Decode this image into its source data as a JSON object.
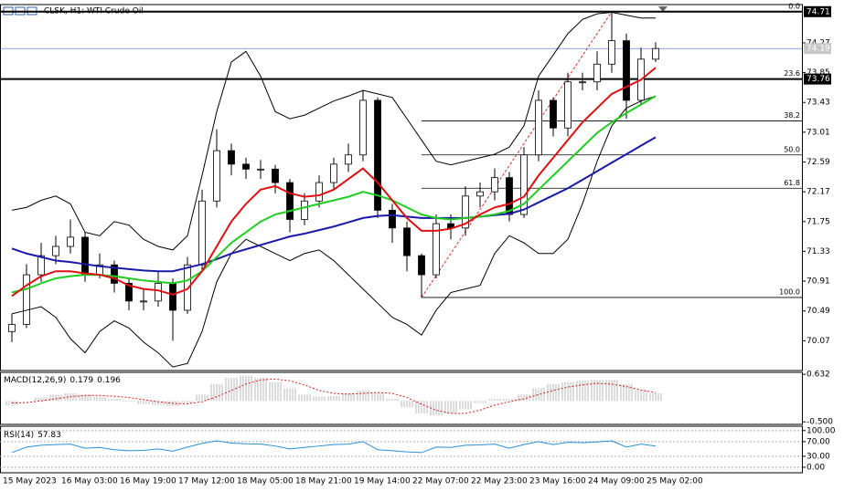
{
  "chart_data": [
    {
      "type": "candlestick",
      "title": "CLSK, H1: WTI Crude Oil",
      "x": [
        "15 May 2023",
        null,
        null,
        null,
        "16 May 03:00",
        null,
        null,
        null,
        "16 May 19:00",
        null,
        null,
        null,
        "17 May 12:00",
        null,
        null,
        null,
        "18 May 05:00",
        null,
        null,
        null,
        "18 May 21:00",
        null,
        null,
        null,
        "19 May 14:00",
        null,
        null,
        null,
        "22 May 07:00",
        null,
        null,
        null,
        "22 May 23:00",
        null,
        null,
        null,
        "23 May 16:00",
        null,
        null,
        null,
        "24 May 09:00",
        null,
        null,
        null,
        "25 May 02:00"
      ],
      "open": [
        70.2,
        70.3,
        71.0,
        71.27,
        71.4,
        71.53,
        71.0,
        71.14,
        70.88,
        70.63,
        70.63,
        70.88,
        70.5,
        71.14,
        72.04,
        72.75,
        72.56,
        72.49,
        72.49,
        72.3,
        71.78,
        72.04,
        72.3,
        72.56,
        72.69,
        73.46,
        71.91,
        71.66,
        71.27,
        71.0,
        71.72,
        71.66,
        72.11,
        72.17,
        72.37,
        71.85,
        72.69,
        73.46,
        73.07,
        73.72,
        73.72,
        73.97,
        74.3,
        73.46,
        74.04
      ],
      "high": [
        70.45,
        71.15,
        71.45,
        71.55,
        71.78,
        71.6,
        71.3,
        71.2,
        70.95,
        70.8,
        71.05,
        70.95,
        71.25,
        72.2,
        73.05,
        72.85,
        72.65,
        72.62,
        72.55,
        72.35,
        72.15,
        72.4,
        72.65,
        72.85,
        73.6,
        73.5,
        72.0,
        71.75,
        71.3,
        71.85,
        71.85,
        72.25,
        72.3,
        72.5,
        72.45,
        72.8,
        73.6,
        73.5,
        73.85,
        73.85,
        74.15,
        74.71,
        74.4,
        74.2,
        74.28
      ],
      "low": [
        70.05,
        70.25,
        70.9,
        71.15,
        71.3,
        70.9,
        70.95,
        70.75,
        70.5,
        70.5,
        70.55,
        70.07,
        70.45,
        71.05,
        71.95,
        72.4,
        72.35,
        72.35,
        72.15,
        71.6,
        71.7,
        71.95,
        72.2,
        72.45,
        72.6,
        71.8,
        71.45,
        71.05,
        70.68,
        70.95,
        71.5,
        71.55,
        71.95,
        72.05,
        71.75,
        71.8,
        72.6,
        72.95,
        72.95,
        73.6,
        73.6,
        73.85,
        73.2,
        73.4,
        74.0
      ],
      "close": [
        70.3,
        71.0,
        71.27,
        71.4,
        71.53,
        71.0,
        71.14,
        70.88,
        70.63,
        70.63,
        70.88,
        70.5,
        71.14,
        72.04,
        72.75,
        72.56,
        72.49,
        72.49,
        72.3,
        71.78,
        72.04,
        72.3,
        72.56,
        72.69,
        73.46,
        71.91,
        71.66,
        71.27,
        71.0,
        71.72,
        71.66,
        72.11,
        72.17,
        72.37,
        71.85,
        72.69,
        73.46,
        73.07,
        73.72,
        73.72,
        73.97,
        74.3,
        73.46,
        74.04,
        74.19
      ],
      "overlays": [
        {
          "color": "#000000",
          "values": [
            71.91,
            71.95,
            72.05,
            72.11,
            72.0,
            71.6,
            71.55,
            71.75,
            71.7,
            71.5,
            71.4,
            71.35,
            71.55,
            72.4,
            73.3,
            74.0,
            74.15,
            73.8,
            73.3,
            73.2,
            73.25,
            73.35,
            73.45,
            73.52,
            73.6,
            73.55,
            73.5,
            73.2,
            72.9,
            72.6,
            72.55,
            72.6,
            72.65,
            72.7,
            72.8,
            73.1,
            73.8,
            74.1,
            74.4,
            74.6,
            74.68,
            74.7,
            74.66,
            74.62,
            74.62
          ]
        },
        {
          "color": "#000000",
          "values": [
            70.45,
            70.5,
            70.55,
            70.4,
            70.1,
            69.9,
            70.2,
            70.35,
            70.25,
            70.05,
            69.9,
            69.7,
            69.75,
            70.2,
            70.9,
            71.3,
            71.5,
            71.4,
            71.3,
            71.2,
            71.3,
            71.35,
            71.2,
            71.0,
            70.8,
            70.6,
            70.4,
            70.3,
            70.15,
            70.5,
            70.75,
            70.8,
            70.85,
            71.3,
            71.55,
            71.45,
            71.3,
            71.3,
            71.5,
            72.0,
            72.6,
            73.1,
            73.35,
            73.45,
            73.52
          ]
        },
        {
          "color": "#1a1aa8",
          "values": [
            71.37,
            71.3,
            71.25,
            71.2,
            71.18,
            71.15,
            71.12,
            71.1,
            71.08,
            71.06,
            71.05,
            71.05,
            71.1,
            71.15,
            71.22,
            71.3,
            71.36,
            71.42,
            71.48,
            71.54,
            71.58,
            71.63,
            71.68,
            71.74,
            71.8,
            71.83,
            71.84,
            71.82,
            71.8,
            71.8,
            71.8,
            71.8,
            71.82,
            71.84,
            71.86,
            71.92,
            72.02,
            72.12,
            72.22,
            72.34,
            72.46,
            72.58,
            72.7,
            72.82,
            72.94
          ]
        },
        {
          "color": "#22cc22",
          "values": [
            70.75,
            70.8,
            70.88,
            70.95,
            70.98,
            71.0,
            71.0,
            70.98,
            70.95,
            70.92,
            70.9,
            70.88,
            70.92,
            71.05,
            71.25,
            71.45,
            71.6,
            71.75,
            71.85,
            71.9,
            71.95,
            72.0,
            72.05,
            72.1,
            72.17,
            72.12,
            72.05,
            71.95,
            71.85,
            71.8,
            71.78,
            71.8,
            71.82,
            71.85,
            71.9,
            72.0,
            72.2,
            72.4,
            72.6,
            72.8,
            73.0,
            73.15,
            73.28,
            73.4,
            73.52
          ]
        },
        {
          "color": "#dd1111",
          "values": [
            70.7,
            70.85,
            70.98,
            71.05,
            71.05,
            71.02,
            71.0,
            70.95,
            70.85,
            70.8,
            70.78,
            70.72,
            70.8,
            71.05,
            71.4,
            71.75,
            72.0,
            72.2,
            72.25,
            72.15,
            72.1,
            72.12,
            72.2,
            72.35,
            72.5,
            72.3,
            72.05,
            71.8,
            71.62,
            71.62,
            71.65,
            71.72,
            71.85,
            71.95,
            72.0,
            72.1,
            72.4,
            72.65,
            72.9,
            73.15,
            73.35,
            73.55,
            73.65,
            73.75,
            73.92
          ]
        }
      ],
      "ylim": [
        69.65,
        74.81
      ],
      "yticks": [
        74.27,
        73.85,
        73.43,
        73.01,
        72.59,
        72.17,
        71.75,
        71.33,
        70.91,
        70.49,
        70.07
      ],
      "hlines": [
        {
          "value": 74.71,
          "color": "#000000"
        },
        {
          "value": 73.76,
          "color": "#000000"
        }
      ],
      "last_price": 74.19,
      "last_price_color": "#4a6fd0",
      "fib_color": "#e03030",
      "fibonacci": [
        {
          "value": 74.71,
          "label": "0.0"
        },
        {
          "value": 73.76,
          "label": "23.6"
        },
        {
          "value": 73.17,
          "label": "38.2"
        },
        {
          "value": 72.69,
          "label": "50.0"
        },
        {
          "value": 72.22,
          "label": "61.8"
        },
        {
          "value": 70.68,
          "label": "100.0"
        }
      ]
    },
    {
      "type": "macd",
      "label": "MACD(12,26,9)",
      "series": [
        {
          "color": "#b8b8b8",
          "values": [
            -0.1,
            0.0,
            0.08,
            0.15,
            0.18,
            0.15,
            0.1,
            0.05,
            -0.02,
            -0.08,
            -0.1,
            -0.12,
            -0.05,
            0.15,
            0.4,
            0.55,
            0.6,
            0.55,
            0.45,
            0.3,
            0.15,
            0.1,
            0.12,
            0.18,
            0.25,
            0.2,
            0.05,
            -0.15,
            -0.3,
            -0.35,
            -0.3,
            -0.2,
            -0.05,
            0.05,
            0.05,
            0.15,
            0.3,
            0.4,
            0.45,
            0.48,
            0.5,
            0.5,
            0.4,
            0.25,
            0.179
          ]
        },
        {
          "color": "#d02020",
          "values": [
            -0.05,
            -0.04,
            0.0,
            0.05,
            0.1,
            0.13,
            0.13,
            0.11,
            0.08,
            0.03,
            -0.02,
            -0.06,
            -0.07,
            -0.02,
            0.1,
            0.25,
            0.4,
            0.5,
            0.52,
            0.48,
            0.38,
            0.25,
            0.18,
            0.16,
            0.18,
            0.2,
            0.18,
            0.08,
            -0.08,
            -0.22,
            -0.3,
            -0.3,
            -0.22,
            -0.1,
            -0.02,
            0.05,
            0.15,
            0.25,
            0.33,
            0.38,
            0.42,
            0.4,
            0.34,
            0.26,
            0.196
          ]
        }
      ],
      "ylim": [
        -0.56,
        0.68
      ],
      "yticks": [
        0.632,
        {
          "value": -0.5,
          "label": "-0.500"
        }
      ]
    },
    {
      "type": "line",
      "label": "RSI(14)",
      "series": [
        {
          "color": "#2b8fd6",
          "values": [
            40,
            55,
            60,
            62,
            63,
            52,
            54,
            48,
            45,
            46,
            50,
            44,
            55,
            65,
            72,
            66,
            64,
            63,
            58,
            50,
            54,
            58,
            62,
            63,
            70,
            48,
            45,
            42,
            40,
            55,
            54,
            60,
            61,
            63,
            52,
            62,
            70,
            62,
            68,
            67,
            69,
            72,
            55,
            63,
            57.83
          ]
        }
      ],
      "ylim": [
        -15,
        112
      ],
      "yticks": [
        {
          "value": 100,
          "label": "100.00"
        },
        {
          "value": 70,
          "label": "70.00"
        },
        {
          "value": 30,
          "label": "30.00"
        },
        {
          "value": 0,
          "label": "0.00"
        }
      ]
    }
  ]
}
